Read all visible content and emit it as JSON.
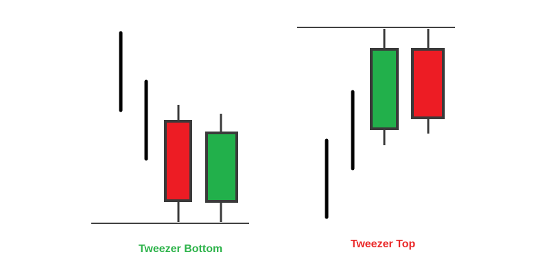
{
  "patterns": [
    {
      "caption": "Tweezer Bottom",
      "caption_color": "#2db34a",
      "reference_line": "support",
      "candles": [
        {
          "type": "trend-bar",
          "direction": "down"
        },
        {
          "type": "trend-bar",
          "direction": "down"
        },
        {
          "type": "candle",
          "color": "red",
          "direction": "bearish"
        },
        {
          "type": "candle",
          "color": "green",
          "direction": "bullish"
        }
      ]
    },
    {
      "caption": "Tweezer Top",
      "caption_color": "#ea2a2a",
      "reference_line": "resistance",
      "candles": [
        {
          "type": "trend-bar",
          "direction": "up"
        },
        {
          "type": "trend-bar",
          "direction": "up"
        },
        {
          "type": "candle",
          "color": "green",
          "direction": "bullish"
        },
        {
          "type": "candle",
          "color": "red",
          "direction": "bearish"
        }
      ]
    }
  ],
  "colors": {
    "bullish": "#22b04b",
    "bearish": "#ed1c24",
    "outline": "#3a3a3a",
    "trend": "#000000",
    "line": "#000000"
  }
}
